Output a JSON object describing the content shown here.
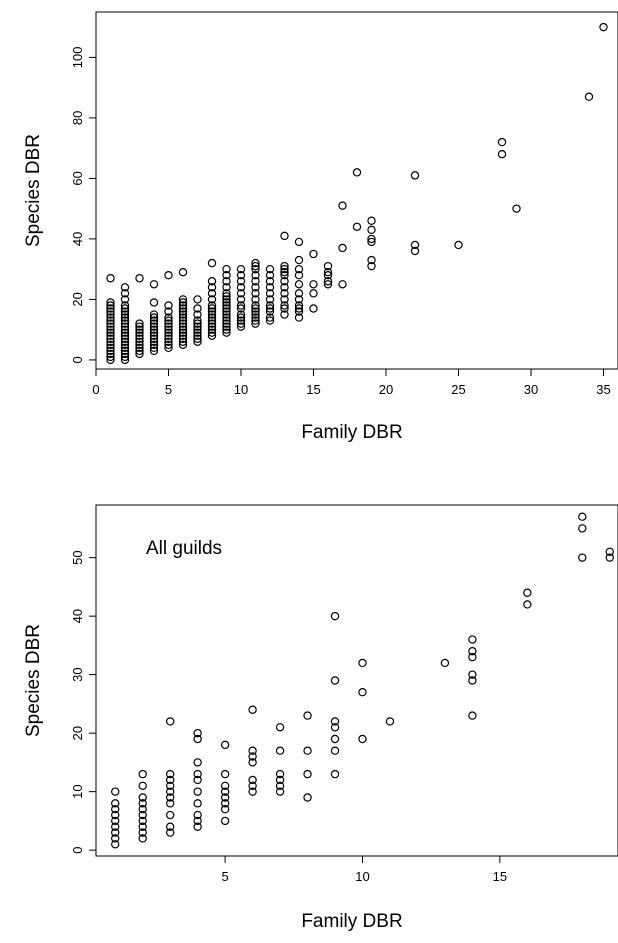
{
  "chart_data": [
    {
      "type": "scatter",
      "title": "",
      "xlabel": "Family DBR",
      "ylabel": "Species DBR",
      "xlim": [
        0,
        36
      ],
      "ylim": [
        -3,
        115
      ],
      "xticks": [
        0,
        5,
        10,
        15,
        20,
        25,
        30,
        35
      ],
      "yticks": [
        0,
        20,
        40,
        60,
        80,
        100
      ],
      "grid": false,
      "legend": "none",
      "annotation": "",
      "marker": "open-circle",
      "color": "#000000",
      "points": [
        [
          1,
          0
        ],
        [
          1,
          1
        ],
        [
          1,
          2
        ],
        [
          1,
          3
        ],
        [
          1,
          4
        ],
        [
          1,
          5
        ],
        [
          1,
          6
        ],
        [
          1,
          7
        ],
        [
          1,
          8
        ],
        [
          1,
          9
        ],
        [
          1,
          10
        ],
        [
          1,
          11
        ],
        [
          1,
          12
        ],
        [
          1,
          13
        ],
        [
          1,
          14
        ],
        [
          1,
          15
        ],
        [
          1,
          16
        ],
        [
          1,
          17
        ],
        [
          1,
          18
        ],
        [
          1,
          19
        ],
        [
          1,
          27
        ],
        [
          2,
          0
        ],
        [
          2,
          1
        ],
        [
          2,
          2
        ],
        [
          2,
          3
        ],
        [
          2,
          4
        ],
        [
          2,
          5
        ],
        [
          2,
          6
        ],
        [
          2,
          7
        ],
        [
          2,
          8
        ],
        [
          2,
          9
        ],
        [
          2,
          10
        ],
        [
          2,
          11
        ],
        [
          2,
          12
        ],
        [
          2,
          13
        ],
        [
          2,
          14
        ],
        [
          2,
          15
        ],
        [
          2,
          16
        ],
        [
          2,
          17
        ],
        [
          2,
          18
        ],
        [
          2,
          20
        ],
        [
          2,
          22
        ],
        [
          2,
          24
        ],
        [
          3,
          2
        ],
        [
          3,
          3
        ],
        [
          3,
          4
        ],
        [
          3,
          5
        ],
        [
          3,
          6
        ],
        [
          3,
          7
        ],
        [
          3,
          8
        ],
        [
          3,
          9
        ],
        [
          3,
          10
        ],
        [
          3,
          11
        ],
        [
          3,
          12
        ],
        [
          3,
          27
        ],
        [
          4,
          3
        ],
        [
          4,
          4
        ],
        [
          4,
          5
        ],
        [
          4,
          6
        ],
        [
          4,
          7
        ],
        [
          4,
          8
        ],
        [
          4,
          9
        ],
        [
          4,
          10
        ],
        [
          4,
          11
        ],
        [
          4,
          12
        ],
        [
          4,
          13
        ],
        [
          4,
          14
        ],
        [
          4,
          15
        ],
        [
          4,
          19
        ],
        [
          4,
          25
        ],
        [
          5,
          4
        ],
        [
          5,
          5
        ],
        [
          5,
          6
        ],
        [
          5,
          7
        ],
        [
          5,
          8
        ],
        [
          5,
          9
        ],
        [
          5,
          10
        ],
        [
          5,
          11
        ],
        [
          5,
          12
        ],
        [
          5,
          13
        ],
        [
          5,
          14
        ],
        [
          5,
          16
        ],
        [
          5,
          18
        ],
        [
          5,
          28
        ],
        [
          6,
          5
        ],
        [
          6,
          6
        ],
        [
          6,
          7
        ],
        [
          6,
          8
        ],
        [
          6,
          9
        ],
        [
          6,
          10
        ],
        [
          6,
          11
        ],
        [
          6,
          12
        ],
        [
          6,
          13
        ],
        [
          6,
          14
        ],
        [
          6,
          15
        ],
        [
          6,
          16
        ],
        [
          6,
          17
        ],
        [
          6,
          18
        ],
        [
          6,
          19
        ],
        [
          6,
          20
        ],
        [
          6,
          29
        ],
        [
          7,
          6
        ],
        [
          7,
          7
        ],
        [
          7,
          8
        ],
        [
          7,
          9
        ],
        [
          7,
          10
        ],
        [
          7,
          11
        ],
        [
          7,
          12
        ],
        [
          7,
          13
        ],
        [
          7,
          15
        ],
        [
          7,
          17
        ],
        [
          7,
          20
        ],
        [
          8,
          8
        ],
        [
          8,
          9
        ],
        [
          8,
          10
        ],
        [
          8,
          11
        ],
        [
          8,
          12
        ],
        [
          8,
          13
        ],
        [
          8,
          14
        ],
        [
          8,
          15
        ],
        [
          8,
          16
        ],
        [
          8,
          17
        ],
        [
          8,
          18
        ],
        [
          8,
          20
        ],
        [
          8,
          22
        ],
        [
          8,
          24
        ],
        [
          8,
          26
        ],
        [
          8,
          32
        ],
        [
          9,
          9
        ],
        [
          9,
          10
        ],
        [
          9,
          11
        ],
        [
          9,
          12
        ],
        [
          9,
          13
        ],
        [
          9,
          14
        ],
        [
          9,
          15
        ],
        [
          9,
          16
        ],
        [
          9,
          17
        ],
        [
          9,
          18
        ],
        [
          9,
          19
        ],
        [
          9,
          20
        ],
        [
          9,
          21
        ],
        [
          9,
          22
        ],
        [
          9,
          24
        ],
        [
          9,
          26
        ],
        [
          9,
          28
        ],
        [
          9,
          30
        ],
        [
          10,
          11
        ],
        [
          10,
          12
        ],
        [
          10,
          13
        ],
        [
          10,
          14
        ],
        [
          10,
          15
        ],
        [
          10,
          17
        ],
        [
          10,
          18
        ],
        [
          10,
          20
        ],
        [
          10,
          22
        ],
        [
          10,
          24
        ],
        [
          10,
          26
        ],
        [
          10,
          28
        ],
        [
          10,
          30
        ],
        [
          11,
          12
        ],
        [
          11,
          13
        ],
        [
          11,
          14
        ],
        [
          11,
          15
        ],
        [
          11,
          16
        ],
        [
          11,
          17
        ],
        [
          11,
          18
        ],
        [
          11,
          20
        ],
        [
          11,
          22
        ],
        [
          11,
          24
        ],
        [
          11,
          26
        ],
        [
          11,
          28
        ],
        [
          11,
          30
        ],
        [
          11,
          31
        ],
        [
          11,
          32
        ],
        [
          12,
          13
        ],
        [
          12,
          14
        ],
        [
          12,
          16
        ],
        [
          12,
          17
        ],
        [
          12,
          18
        ],
        [
          12,
          20
        ],
        [
          12,
          22
        ],
        [
          12,
          24
        ],
        [
          12,
          26
        ],
        [
          12,
          28
        ],
        [
          12,
          30
        ],
        [
          13,
          15
        ],
        [
          13,
          17
        ],
        [
          13,
          18
        ],
        [
          13,
          20
        ],
        [
          13,
          22
        ],
        [
          13,
          24
        ],
        [
          13,
          26
        ],
        [
          13,
          28
        ],
        [
          13,
          29
        ],
        [
          13,
          30
        ],
        [
          13,
          31
        ],
        [
          13,
          41
        ],
        [
          14,
          14
        ],
        [
          14,
          16
        ],
        [
          14,
          17
        ],
        [
          14,
          18
        ],
        [
          14,
          20
        ],
        [
          14,
          22
        ],
        [
          14,
          25
        ],
        [
          14,
          28
        ],
        [
          14,
          30
        ],
        [
          14,
          33
        ],
        [
          14,
          39
        ],
        [
          15,
          17
        ],
        [
          15,
          22
        ],
        [
          15,
          25
        ],
        [
          15,
          35
        ],
        [
          16,
          25
        ],
        [
          16,
          26
        ],
        [
          16,
          28
        ],
        [
          16,
          29
        ],
        [
          16,
          31
        ],
        [
          17,
          25
        ],
        [
          17,
          37
        ],
        [
          17,
          51
        ],
        [
          18,
          44
        ],
        [
          18,
          62
        ],
        [
          19,
          31
        ],
        [
          19,
          33
        ],
        [
          19,
          39
        ],
        [
          19,
          40
        ],
        [
          19,
          43
        ],
        [
          19,
          46
        ],
        [
          22,
          36
        ],
        [
          22,
          38
        ],
        [
          22,
          61
        ],
        [
          25,
          38
        ],
        [
          28,
          68
        ],
        [
          28,
          72
        ],
        [
          29,
          50
        ],
        [
          34,
          87
        ],
        [
          35,
          110
        ]
      ]
    },
    {
      "type": "scatter",
      "title": "",
      "xlabel": "Family DBR",
      "ylabel": "Species DBR",
      "xlim": [
        0.3,
        19.3
      ],
      "ylim": [
        -1,
        59
      ],
      "xticks": [
        5,
        10,
        15
      ],
      "yticks": [
        0,
        10,
        20,
        30,
        40,
        50
      ],
      "grid": false,
      "legend": "none",
      "annotation": "All guilds",
      "marker": "open-circle",
      "color": "#000000",
      "points": [
        [
          1,
          1
        ],
        [
          1,
          2
        ],
        [
          1,
          3
        ],
        [
          1,
          4
        ],
        [
          1,
          5
        ],
        [
          1,
          6
        ],
        [
          1,
          7
        ],
        [
          1,
          8
        ],
        [
          1,
          10
        ],
        [
          2,
          2
        ],
        [
          2,
          3
        ],
        [
          2,
          4
        ],
        [
          2,
          5
        ],
        [
          2,
          6
        ],
        [
          2,
          7
        ],
        [
          2,
          8
        ],
        [
          2,
          9
        ],
        [
          2,
          11
        ],
        [
          2,
          13
        ],
        [
          3,
          3
        ],
        [
          3,
          4
        ],
        [
          3,
          6
        ],
        [
          3,
          8
        ],
        [
          3,
          9
        ],
        [
          3,
          10
        ],
        [
          3,
          11
        ],
        [
          3,
          12
        ],
        [
          3,
          13
        ],
        [
          3,
          22
        ],
        [
          4,
          4
        ],
        [
          4,
          5
        ],
        [
          4,
          6
        ],
        [
          4,
          8
        ],
        [
          4,
          10
        ],
        [
          4,
          12
        ],
        [
          4,
          13
        ],
        [
          4,
          15
        ],
        [
          4,
          19
        ],
        [
          4,
          20
        ],
        [
          5,
          5
        ],
        [
          5,
          7
        ],
        [
          5,
          8
        ],
        [
          5,
          9
        ],
        [
          5,
          10
        ],
        [
          5,
          11
        ],
        [
          5,
          13
        ],
        [
          5,
          18
        ],
        [
          6,
          10
        ],
        [
          6,
          11
        ],
        [
          6,
          12
        ],
        [
          6,
          15
        ],
        [
          6,
          16
        ],
        [
          6,
          17
        ],
        [
          6,
          24
        ],
        [
          7,
          10
        ],
        [
          7,
          11
        ],
        [
          7,
          12
        ],
        [
          7,
          13
        ],
        [
          7,
          17
        ],
        [
          7,
          21
        ],
        [
          8,
          9
        ],
        [
          8,
          13
        ],
        [
          8,
          17
        ],
        [
          8,
          23
        ],
        [
          9,
          13
        ],
        [
          9,
          17
        ],
        [
          9,
          19
        ],
        [
          9,
          21
        ],
        [
          9,
          22
        ],
        [
          9,
          29
        ],
        [
          9,
          40
        ],
        [
          10,
          19
        ],
        [
          10,
          27
        ],
        [
          10,
          32
        ],
        [
          11,
          22
        ],
        [
          13,
          32
        ],
        [
          14,
          23
        ],
        [
          14,
          29
        ],
        [
          14,
          30
        ],
        [
          14,
          33
        ],
        [
          14,
          34
        ],
        [
          14,
          36
        ],
        [
          16,
          42
        ],
        [
          16,
          44
        ],
        [
          18,
          50
        ],
        [
          18,
          55
        ],
        [
          18,
          57
        ],
        [
          19,
          50
        ],
        [
          19,
          51
        ]
      ]
    }
  ]
}
